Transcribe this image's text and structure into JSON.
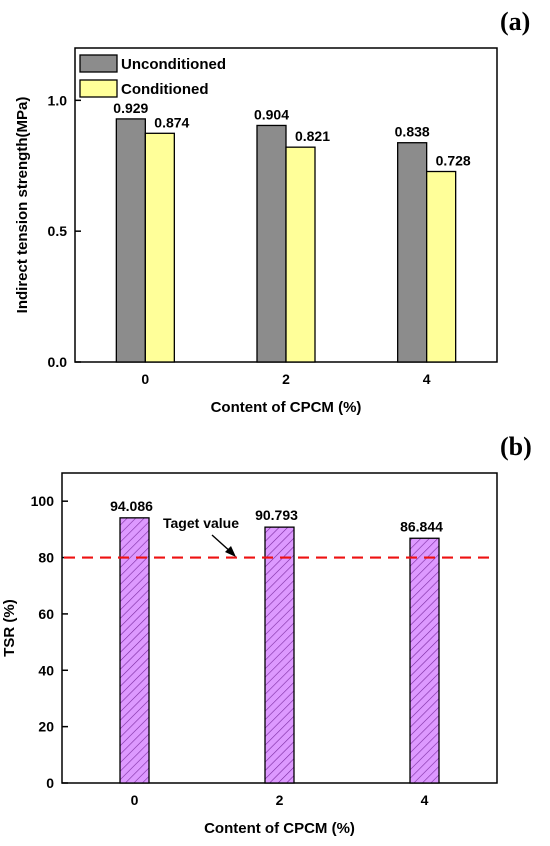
{
  "figure": {
    "panel_a_label": "(a)",
    "panel_b_label": "(b)"
  },
  "chart_data": [
    {
      "type": "bar",
      "panel": "(a)",
      "categories": [
        "0",
        "2",
        "4"
      ],
      "series": [
        {
          "name": "Unconditioned",
          "values": [
            0.929,
            0.904,
            0.838
          ],
          "labels": [
            "0.929",
            "0.904",
            "0.838"
          ],
          "color": "#8c8c8c"
        },
        {
          "name": "Conditioned",
          "values": [
            0.874,
            0.821,
            0.728
          ],
          "labels": [
            "0.874",
            "0.821",
            "0.728"
          ],
          "color": "#ffff99"
        }
      ],
      "xlabel": "Content of CPCM (%)",
      "ylabel": "Indirect tension strength(MPa)",
      "ylim": [
        0,
        1.2
      ],
      "yticks": [
        0.0,
        0.5,
        1.0
      ],
      "ytick_labels": [
        "0.0",
        "0.5",
        "1.0"
      ],
      "grid": false,
      "legend_position": "top-left"
    },
    {
      "type": "bar",
      "panel": "(b)",
      "categories": [
        "0",
        "2",
        "4"
      ],
      "series": [
        {
          "values": [
            94.086,
            90.793,
            86.844
          ],
          "labels": [
            "94.086",
            "90.793",
            "86.844"
          ],
          "color": "#dd99ff",
          "hatch": "diagonal"
        }
      ],
      "xlabel": "Content of CPCM (%)",
      "ylabel": "TSR (%)",
      "ylim": [
        0,
        110
      ],
      "yticks": [
        0,
        20,
        40,
        60,
        80,
        100
      ],
      "ytick_labels": [
        "0",
        "20",
        "40",
        "60",
        "80",
        "100"
      ],
      "grid": false,
      "reference_line": {
        "value": 80,
        "color": "#ee1111",
        "style": "dashed",
        "label": "Taget value"
      }
    }
  ]
}
